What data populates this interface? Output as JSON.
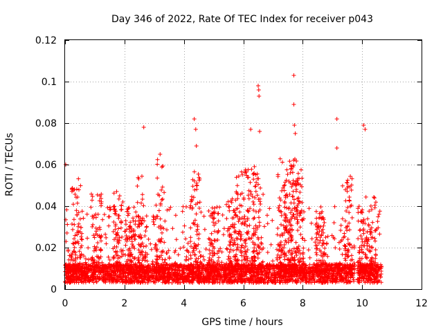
{
  "chart_data": {
    "type": "scatter",
    "title": "Day 346 of 2022, Rate Of TEC Index for receiver p043",
    "xlabel": "GPS time / hours",
    "ylabel": "ROTI / TECUs",
    "xlim": [
      0,
      12
    ],
    "ylim": [
      0,
      0.12
    ],
    "xticks": [
      "0",
      "2",
      "4",
      "6",
      "8",
      "10",
      "12"
    ],
    "yticks": [
      "0",
      "0.02",
      "0.04",
      "0.06",
      "0.08",
      "0.1",
      "0.12"
    ],
    "xtick_values": [
      0,
      2,
      4,
      6,
      8,
      10,
      12
    ],
    "ytick_values": [
      0,
      0.02,
      0.04,
      0.06,
      0.08,
      0.1,
      0.12
    ],
    "grid": true,
    "marker": "+",
    "color": "#ff0000",
    "data_extent_hours": [
      0,
      10.65
    ],
    "data_gap_hours": [
      9.75,
      9.85
    ],
    "notable_points": [
      {
        "x": 0.02,
        "y": 0.06
      },
      {
        "x": 2.65,
        "y": 0.078
      },
      {
        "x": 3.2,
        "y": 0.065
      },
      {
        "x": 4.35,
        "y": 0.082
      },
      {
        "x": 4.4,
        "y": 0.077
      },
      {
        "x": 4.42,
        "y": 0.069
      },
      {
        "x": 6.25,
        "y": 0.077
      },
      {
        "x": 6.5,
        "y": 0.098
      },
      {
        "x": 6.52,
        "y": 0.096
      },
      {
        "x": 6.53,
        "y": 0.093
      },
      {
        "x": 6.55,
        "y": 0.076
      },
      {
        "x": 7.7,
        "y": 0.103
      },
      {
        "x": 7.7,
        "y": 0.089
      },
      {
        "x": 7.72,
        "y": 0.079
      },
      {
        "x": 7.75,
        "y": 0.075
      },
      {
        "x": 9.15,
        "y": 0.082
      },
      {
        "x": 9.15,
        "y": 0.068
      },
      {
        "x": 10.05,
        "y": 0.079
      },
      {
        "x": 10.1,
        "y": 0.077
      }
    ],
    "hotspots": [
      {
        "x": 0.4,
        "peak": 0.055
      },
      {
        "x": 1.05,
        "peak": 0.053
      },
      {
        "x": 1.8,
        "peak": 0.05
      },
      {
        "x": 2.2,
        "peak": 0.04
      },
      {
        "x": 2.6,
        "peak": 0.055
      },
      {
        "x": 3.2,
        "peak": 0.063
      },
      {
        "x": 4.4,
        "peak": 0.06
      },
      {
        "x": 5.0,
        "peak": 0.04
      },
      {
        "x": 5.6,
        "peak": 0.045
      },
      {
        "x": 5.9,
        "peak": 0.062
      },
      {
        "x": 6.2,
        "peak": 0.06
      },
      {
        "x": 6.5,
        "peak": 0.058
      },
      {
        "x": 7.3,
        "peak": 0.064
      },
      {
        "x": 7.55,
        "peak": 0.066
      },
      {
        "x": 7.7,
        "peak": 0.062
      },
      {
        "x": 7.9,
        "peak": 0.066
      },
      {
        "x": 8.6,
        "peak": 0.04
      },
      {
        "x": 9.5,
        "peak": 0.055
      },
      {
        "x": 10.0,
        "peak": 0.04
      },
      {
        "x": 10.3,
        "peak": 0.045
      }
    ]
  }
}
